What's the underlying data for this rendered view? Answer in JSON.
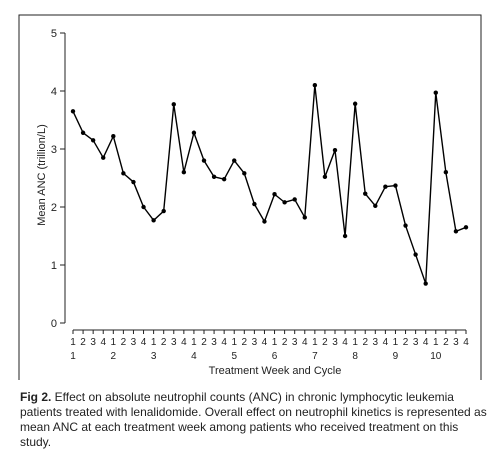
{
  "chart_data": {
    "type": "line",
    "title": "",
    "xlabel": "Treatment Week and Cycle",
    "ylabel": "Mean ANC (trillion/L)",
    "ylim": [
      0,
      5
    ],
    "yticks": [
      0,
      1,
      2,
      3,
      4,
      5
    ],
    "grid": false,
    "weeks": [
      "1",
      "2",
      "3",
      "4",
      "1",
      "2",
      "3",
      "4",
      "1",
      "2",
      "3",
      "4",
      "1",
      "2",
      "3",
      "4",
      "1",
      "2",
      "3",
      "4",
      "1",
      "2",
      "3",
      "4",
      "1",
      "2",
      "3",
      "4",
      "1",
      "2",
      "3",
      "4",
      "1",
      "2",
      "3",
      "4",
      "1",
      "2",
      "3",
      "4"
    ],
    "cycles": [
      "1",
      "2",
      "3",
      "4",
      "5",
      "6",
      "7",
      "8",
      "9",
      "10"
    ],
    "series": [
      {
        "values": [
          3.65,
          3.28,
          3.15,
          2.85,
          3.22,
          2.58,
          2.43,
          2.0,
          1.77,
          1.93,
          3.77,
          2.6,
          3.28,
          2.8,
          2.52,
          2.48,
          2.8,
          2.58,
          2.05,
          1.75,
          2.22,
          2.08,
          2.13,
          1.82,
          4.1,
          2.52,
          2.98,
          1.5,
          3.78,
          2.23,
          2.02,
          2.35,
          2.37,
          1.68,
          1.18,
          0.68,
          3.97,
          2.6,
          1.58,
          1.65
        ]
      }
    ]
  },
  "caption": {
    "fig_label": "Fig 2.",
    "text": " Effect on absolute neutrophil counts (ANC) in chronic lymphocytic leukemia patients treated with lenalidomide. Overall effect on neutrophil kinetics is represented as mean ANC at each treatment week among patients who received treatment on this study."
  }
}
